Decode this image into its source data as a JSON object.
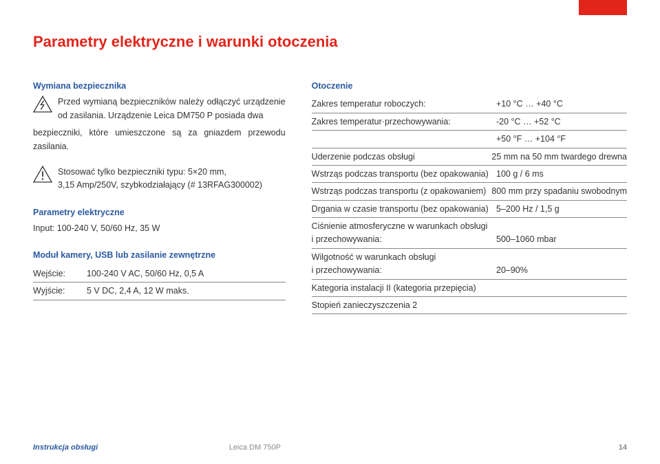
{
  "colors": {
    "accent": "#e1251b",
    "heading_blue": "#2b5aa0",
    "text": "#333333",
    "rule": "#888888",
    "footer_gray": "#888888",
    "background": "#ffffff"
  },
  "typography": {
    "title_fontsize": 22,
    "body_fontsize": 12.5,
    "footer_fontsize": 11,
    "line_height": 1.55
  },
  "title": "Parametry elektryczne i warunki otoczenia",
  "left": {
    "fuse_heading": "Wymiana bezpiecznika",
    "fuse_para_a": "Przed wymianą bezpieczników należy odłączyć urządzenie od zasilania. Urządzenie Leica DM750 P posiada dwa",
    "fuse_para_b": "bezpieczniki, które umieszczone są za gniazdem przewodu zasilania.",
    "warn2_line1": "Stosować tylko bezpieczniki typu: 5×20 mm,",
    "warn2_line2": "3,15 Amp/250V, szybkodziałający (# 13RFAG300002)",
    "elec_heading": "Parametry elektryczne",
    "elec_input": "Input: 100-240 V, 50/60 Hz, 35 W",
    "cam_heading": "Moduł kamery, USB lub zasilanie zewnętrzne",
    "in_label": "Wejście:",
    "in_val": "100-240 V AC, 50/60 Hz, 0,5 A",
    "out_label": "Wyjście:",
    "out_val": "5 V DC, 2,4 A, 12 W maks."
  },
  "right": {
    "env_heading": "Otoczenie",
    "rows": [
      {
        "label": "Zakres temperatur roboczych:",
        "val": "+10 °C … +40 °C"
      },
      {
        "label": "Zakres temperatur·przechowywania:",
        "val": "-20 °C … +52 °C"
      },
      {
        "label": "",
        "val": "+50 °F … +104 °F"
      },
      {
        "label": "Uderzenie podczas obsługi",
        "val": "25 mm na 50 mm twardego drewna"
      },
      {
        "label": "Wstrząs podczas transportu (bez opakowania)",
        "val": "100 g / 6 ms"
      },
      {
        "label": "Wstrząs podczas transportu (z opakowaniem)",
        "val": "800 mm przy spadaniu swobodnym"
      },
      {
        "label": "Drgania w czasie transportu (bez opakowania)",
        "val": "5–200 Hz / 1,5 g"
      },
      {
        "label": "Ciśnienie atmosferyczne w warunkach obsługi i przechowywania:",
        "val": "500–1060 mbar",
        "twoLine": true
      },
      {
        "label": "Wilgotność w warunkach obsługi i przechowywania:",
        "val": "20–90%",
        "twoLine": true
      },
      {
        "label": "Kategoria instalacji II (kategoria przepięcia)",
        "val": ""
      },
      {
        "label": "Stopień zanieczyszczenia 2",
        "val": ""
      }
    ]
  },
  "footer": {
    "left": "Instrukcja obsługi",
    "center": "Leica DM 750P",
    "page": "14"
  }
}
